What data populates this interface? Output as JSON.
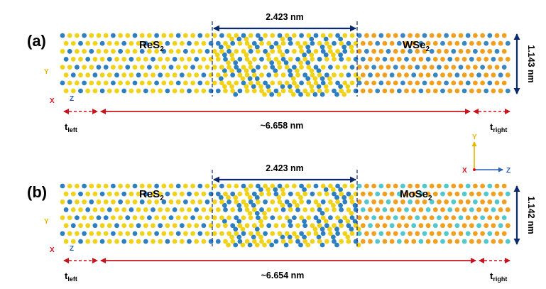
{
  "panels": [
    {
      "label": "(a)",
      "material_left": "ReS",
      "material_left_sub": "2",
      "material_right": "WSe",
      "material_right_sub": "2",
      "overlap_length": "2.423 nm",
      "height": "1.143 nm",
      "total_length": "~6.658 nm",
      "t_left": "t",
      "t_left_sub": "left",
      "t_right": "t",
      "t_right_sub": "right",
      "axis_y": "Y",
      "axis_x": "X",
      "axis_z": "Z",
      "right_atom_colors": [
        "#3a86c0",
        "#f0a020"
      ]
    },
    {
      "label": "(b)",
      "material_left": "ReS",
      "material_left_sub": "2",
      "material_right": "MoSe",
      "material_right_sub": "2",
      "overlap_length": "2.423 nm",
      "height": "1.142 nm",
      "total_length": "~6.654 nm",
      "t_left": "t",
      "t_left_sub": "left",
      "t_right": "t",
      "t_right_sub": "right",
      "axis_y": "Y",
      "axis_x": "X",
      "axis_z": "Z",
      "right_atom_colors": [
        "#50c8cc",
        "#f0a020"
      ]
    }
  ],
  "legend_axes": {
    "y": "Y",
    "x": "X",
    "z": "Z"
  },
  "colors": {
    "re_atom": "#2e7fbf",
    "s_atom": "#f0d21a",
    "arrow_red": "#c8141c",
    "arrow_navy": "#0b2a6e",
    "axis_yellow": "#e8b400",
    "axis_red": "#d6141c",
    "axis_blue": "#2a5fb8"
  }
}
